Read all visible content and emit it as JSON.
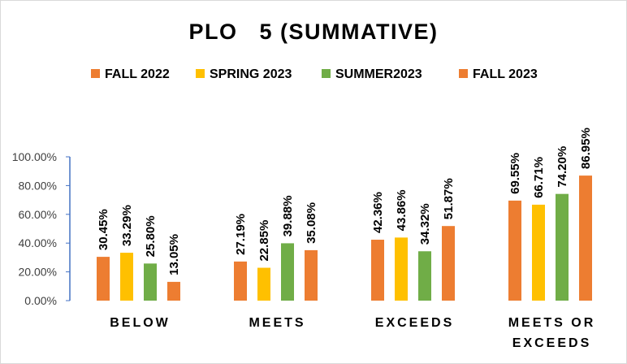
{
  "chart_data": {
    "type": "bar",
    "title": "PLO   5 (SUMMATIVE)",
    "categories": [
      "BELOW",
      "MEETS",
      "EXCEEDS",
      "MEETS OR EXCEEDS"
    ],
    "category_label_lines": [
      [
        "BELOW"
      ],
      [
        "MEETS"
      ],
      [
        "EXCEEDS"
      ],
      [
        "MEETS OR",
        "EXCEEDS"
      ]
    ],
    "series": [
      {
        "name": "FALL 2022",
        "color": "#ED7D31",
        "values": [
          30.45,
          27.19,
          42.36,
          69.55
        ],
        "labels": [
          "30.45%",
          "27.19%",
          "42.36%",
          "69.55%"
        ]
      },
      {
        "name": "SPRING 2023",
        "color": "#FFC000",
        "values": [
          33.29,
          22.85,
          43.86,
          66.71
        ],
        "labels": [
          "33.29%",
          "22.85%",
          "43.86%",
          "66.71%"
        ]
      },
      {
        "name": "SUMMER2023",
        "color": "#70AD47",
        "values": [
          25.8,
          39.88,
          34.32,
          74.2
        ],
        "labels": [
          "25.80%",
          "39.88%",
          "34.32%",
          "74.20%"
        ]
      },
      {
        "name": "FALL 2023",
        "color": "#ED7D31",
        "values": [
          13.05,
          35.08,
          51.87,
          86.95
        ],
        "labels": [
          "13.05%",
          "35.08%",
          "51.87%",
          "86.95%"
        ]
      }
    ],
    "y_ticks": [
      {
        "value": 0,
        "label": "0.00%"
      },
      {
        "value": 20,
        "label": "20.00%"
      },
      {
        "value": 40,
        "label": "40.00%"
      },
      {
        "value": 60,
        "label": "60.00%"
      },
      {
        "value": 80,
        "label": "80.00%"
      },
      {
        "value": 100,
        "label": "100.00%"
      }
    ],
    "ylim": [
      0,
      100
    ],
    "grid": false,
    "legend_position": "top",
    "axis_color": "#4472C4"
  }
}
